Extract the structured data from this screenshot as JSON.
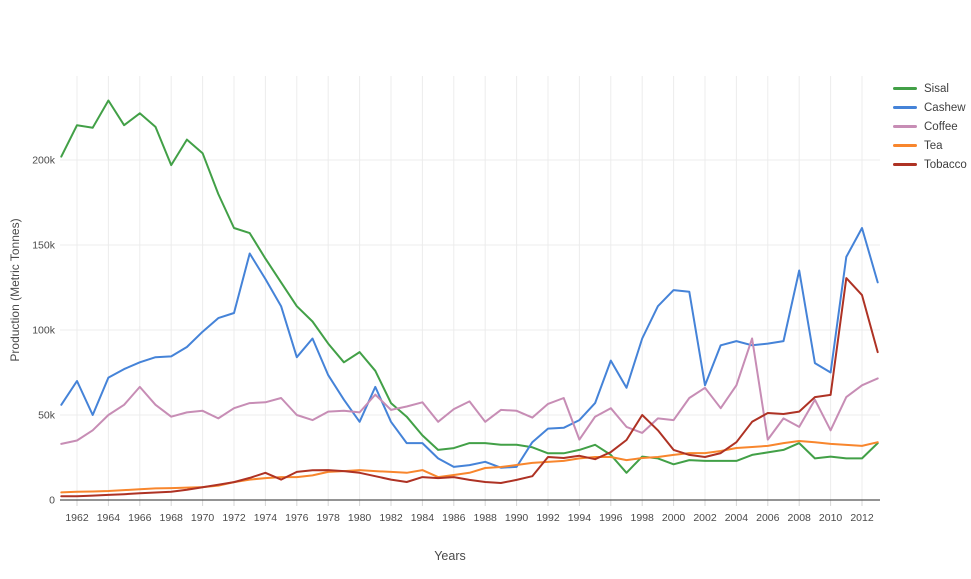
{
  "chart_data": {
    "type": "line",
    "title": "",
    "xlabel": "Years",
    "ylabel": "Production (Metric Tonnes)",
    "values_unit": "thousand metric tonnes",
    "grid": true,
    "legend_position": "right",
    "ylim_thousands": [
      0,
      250
    ],
    "y_ticks": [
      {
        "value": 0,
        "label": "0"
      },
      {
        "value": 50,
        "label": "50k"
      },
      {
        "value": 100,
        "label": "100k"
      },
      {
        "value": 150,
        "label": "150k"
      },
      {
        "value": 200,
        "label": "200k"
      }
    ],
    "x_tick_years": [
      1962,
      1964,
      1966,
      1968,
      1970,
      1972,
      1974,
      1976,
      1978,
      1980,
      1982,
      1984,
      1986,
      1988,
      1990,
      1992,
      1994,
      1996,
      1998,
      2000,
      2002,
      2004,
      2006,
      2008,
      2010,
      2012
    ],
    "years": [
      1961,
      1962,
      1963,
      1964,
      1965,
      1966,
      1967,
      1968,
      1969,
      1970,
      1971,
      1972,
      1973,
      1974,
      1975,
      1976,
      1977,
      1978,
      1979,
      1980,
      1981,
      1982,
      1983,
      1984,
      1985,
      1986,
      1987,
      1988,
      1989,
      1990,
      1991,
      1992,
      1993,
      1994,
      1995,
      1996,
      1997,
      1998,
      1999,
      2000,
      2001,
      2002,
      2003,
      2004,
      2005,
      2006,
      2007,
      2008,
      2009,
      2010,
      2011,
      2012,
      2013
    ],
    "series": [
      {
        "name": "Sisal",
        "color": "#42a047",
        "values": [
          202,
          220.5,
          219,
          235,
          220.5,
          227.5,
          219.5,
          197,
          212,
          204,
          180,
          160,
          157,
          142,
          128,
          114,
          105,
          92,
          81,
          87,
          76,
          57,
          49,
          38,
          29.5,
          30.5,
          33.5,
          33.5,
          32.5,
          32.5,
          31,
          27.5,
          27.5,
          29.5,
          32.5,
          26.5,
          16,
          25.5,
          24.5,
          21,
          23.5,
          23,
          23,
          23,
          26.5,
          28,
          29.5,
          33.5,
          24.5,
          25.5,
          24.5,
          24.5,
          33.5
        ]
      },
      {
        "name": "Cashew",
        "color": "#4583d8",
        "values": [
          56,
          70,
          50,
          72,
          77,
          81,
          84,
          84.5,
          90,
          99,
          107,
          110,
          145,
          130,
          114,
          84,
          95,
          73.5,
          59,
          46,
          66.5,
          46,
          33.5,
          33.5,
          24.5,
          19.5,
          20.5,
          22.5,
          19,
          19.5,
          34,
          42,
          42.5,
          47,
          57,
          82,
          66,
          95,
          114,
          123.5,
          122.5,
          67.5,
          91,
          93.5,
          91,
          92,
          93.5,
          135,
          80.5,
          75,
          143,
          160,
          128
        ]
      },
      {
        "name": "Coffee",
        "color": "#c78db5",
        "values": [
          33,
          35,
          41,
          50,
          56,
          66.5,
          56,
          49,
          51.5,
          52.5,
          48,
          54,
          57,
          57.5,
          60,
          50,
          47,
          52,
          52.5,
          51.5,
          62,
          53,
          55,
          57.5,
          46,
          53.5,
          58,
          46,
          53,
          52.5,
          48.5,
          56.5,
          60,
          35.5,
          49,
          54,
          43,
          39.5,
          48,
          47,
          60,
          66,
          54,
          67.5,
          95,
          35.5,
          48,
          43,
          59,
          41,
          60.5,
          67.5,
          71.5
        ]
      },
      {
        "name": "Tea",
        "color": "#f8862d",
        "values": [
          4.5,
          4.8,
          5,
          5.3,
          5.8,
          6.3,
          6.8,
          7,
          7.3,
          7.6,
          8.5,
          10.5,
          12,
          12.9,
          13.5,
          13.5,
          14.5,
          16.5,
          17,
          17.6,
          17,
          16.5,
          16,
          17.6,
          13.5,
          14.7,
          16,
          18.8,
          19.4,
          20.6,
          21.8,
          22.4,
          23,
          24.5,
          25.3,
          25.3,
          23.5,
          24.7,
          25.3,
          26.5,
          27.6,
          27.6,
          28.8,
          30.6,
          31.2,
          31.8,
          33.5,
          34.7,
          34,
          33,
          32.4,
          31.8,
          34
        ]
      },
      {
        "name": "Tobacco",
        "color": "#ae3224",
        "values": [
          2.2,
          2.2,
          2.6,
          3,
          3.4,
          4,
          4.4,
          4.8,
          6,
          7.5,
          9,
          10.5,
          13,
          16,
          12,
          16.5,
          17.5,
          17.6,
          17,
          16,
          14,
          12,
          10.6,
          13.5,
          12.9,
          13.5,
          11.8,
          10.6,
          10,
          11.8,
          14,
          25.3,
          24.7,
          26,
          24,
          28.2,
          35.3,
          50,
          41,
          29.5,
          26.5,
          25.3,
          27.6,
          34,
          46,
          51.2,
          50.6,
          52,
          60.5,
          61.8,
          130.5,
          120.5,
          87
        ]
      }
    ],
    "colors": {
      "grid_line": "#ececec",
      "zero_axis": "#545454",
      "tick_text": "#4a4a4a",
      "axis_title_text": "#4a4a4a",
      "tick_mark": "#d6d6d6",
      "background": "#ffffff"
    }
  }
}
